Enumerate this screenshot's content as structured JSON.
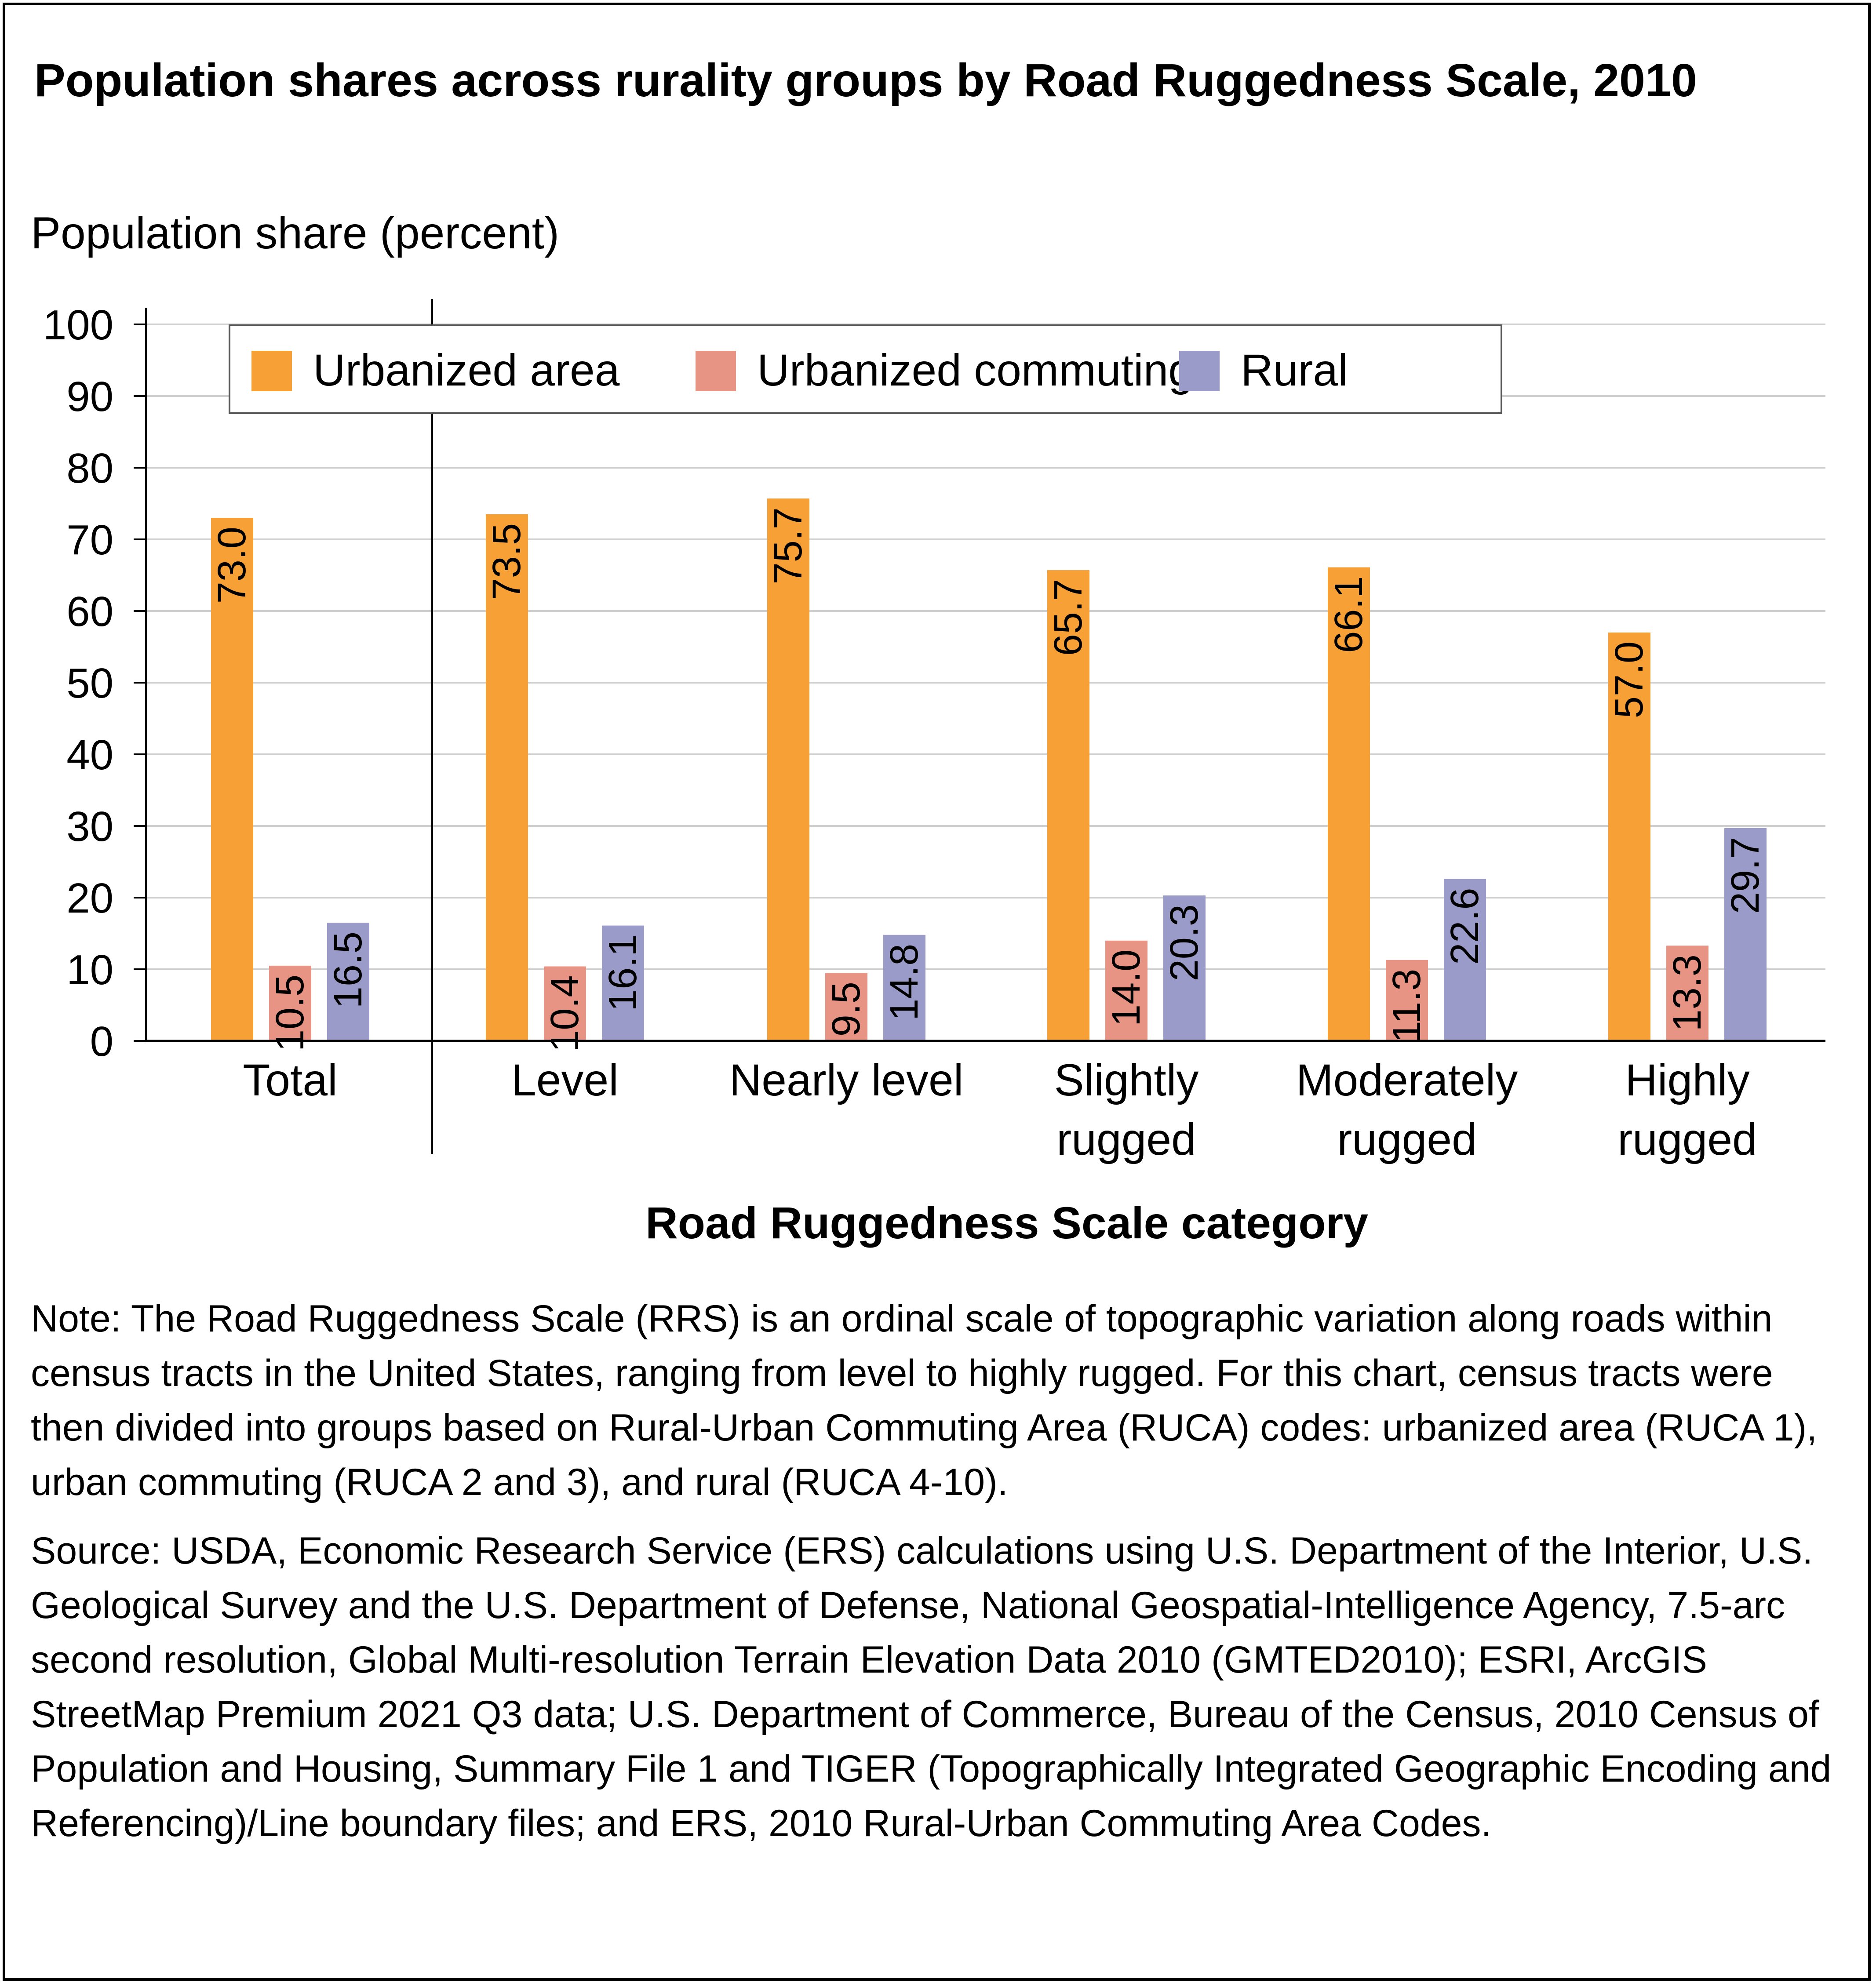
{
  "title": "Population shares across rurality groups by Road Ruggedness Scale, 2010",
  "note": "Note: The Road Ruggedness Scale (RRS) is an ordinal scale of topographic variation along roads within census tracts in the United States, ranging from level to highly rugged. For this chart, census tracts were then divided into groups based on Rural-Urban Commuting Area (RUCA) codes: urbanized area (RUCA 1), urban commuting (RUCA 2 and 3), and rural (RUCA 4-10).",
  "source": "Source: USDA, Economic Research Service (ERS) calculations using U.S. Department of the Interior, U.S. Geological Survey and the U.S. Department of Defense, National Geospatial-Intelligence Agency, 7.5-arc second resolution, Global Multi-resolution Terrain Elevation Data 2010 (GMTED2010); ESRI, ArcGIS StreetMap Premium 2021 Q3 data; U.S. Department of Commerce, Bureau of the Census, 2010 Census of Population and Housing, Summary File 1 and TIGER (Topographically Integrated Geographic Encoding and Referencing)/Line boundary files; and ERS, 2010 Rural-Urban Commuting Area Codes.",
  "chart_data": {
    "type": "bar",
    "title": "Population shares across rurality groups by Road Ruggedness Scale, 2010",
    "ylabel": "Population share (percent)",
    "xlabel": "Road Ruggedness Scale category",
    "ylim": [
      0,
      100
    ],
    "yticks": [
      0,
      10,
      20,
      30,
      40,
      50,
      60,
      70,
      80,
      90,
      100
    ],
    "grid": true,
    "legend_position": "top",
    "categories": [
      [
        "Total"
      ],
      [
        "Level"
      ],
      [
        "Nearly level"
      ],
      [
        "Slightly",
        "rugged"
      ],
      [
        "Moderately",
        "rugged"
      ],
      [
        "Highly",
        "rugged"
      ]
    ],
    "series": [
      {
        "name": "Urbanized area",
        "color": "#f7a035",
        "values": [
          73.0,
          73.5,
          75.7,
          65.7,
          66.1,
          57.0
        ]
      },
      {
        "name": "Urbanized commuting",
        "color": "#e89484",
        "values": [
          10.5,
          10.4,
          9.5,
          14.0,
          11.3,
          13.3
        ]
      },
      {
        "name": "Rural",
        "color": "#9b9bc9",
        "values": [
          16.5,
          16.1,
          14.8,
          20.3,
          22.6,
          29.7
        ]
      }
    ]
  }
}
